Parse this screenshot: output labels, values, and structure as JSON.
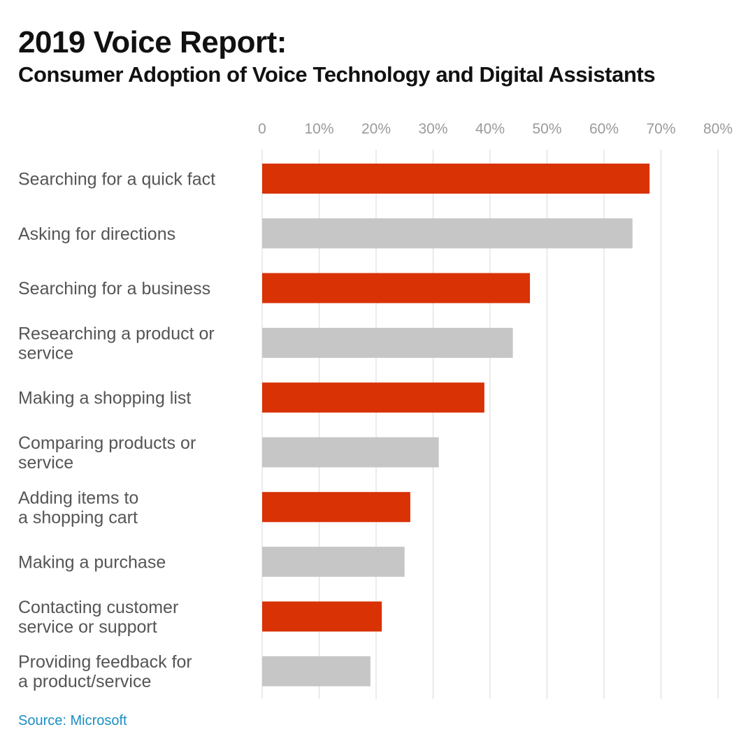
{
  "header": {
    "title": "2019 Voice Report:",
    "subtitle": "Consumer Adoption of Voice Technology and Digital Assistants"
  },
  "footer": {
    "source": "Source: Microsoft"
  },
  "colors": {
    "accent": "#d83205",
    "muted": "#c6c6c6",
    "grid": "#d9d9d9",
    "tick_text": "#9a9a9a",
    "label_text": "#555555",
    "source_text": "#1b8ec2"
  },
  "chart_data": {
    "type": "bar",
    "orientation": "horizontal",
    "title": "2019 Voice Report:",
    "subtitle": "Consumer Adoption of Voice Technology and Digital Assistants",
    "xlabel": "",
    "ylabel": "",
    "xlim": [
      0,
      80
    ],
    "xticks": [
      0,
      10,
      20,
      30,
      40,
      50,
      60,
      70,
      80
    ],
    "xtick_labels": [
      "0",
      "10%",
      "20%",
      "30%",
      "40%",
      "50%",
      "60%",
      "70%",
      "80%"
    ],
    "grid": true,
    "legend": "none",
    "categories": [
      [
        "Searching for a quick fact"
      ],
      [
        "Asking for directions"
      ],
      [
        "Searching for a business"
      ],
      [
        "Researching a product or",
        "service"
      ],
      [
        "Making a shopping list"
      ],
      [
        "Comparing products or",
        "service"
      ],
      [
        "Adding items to",
        "a shopping cart"
      ],
      [
        "Making a purchase"
      ],
      [
        "Contacting customer",
        "service or support"
      ],
      [
        "Providing feedback for",
        "a product/service"
      ]
    ],
    "values": [
      68,
      65,
      47,
      44,
      39,
      31,
      26,
      25,
      21,
      19
    ],
    "bar_colors": [
      "accent",
      "muted",
      "accent",
      "muted",
      "accent",
      "muted",
      "accent",
      "muted",
      "accent",
      "muted"
    ]
  }
}
